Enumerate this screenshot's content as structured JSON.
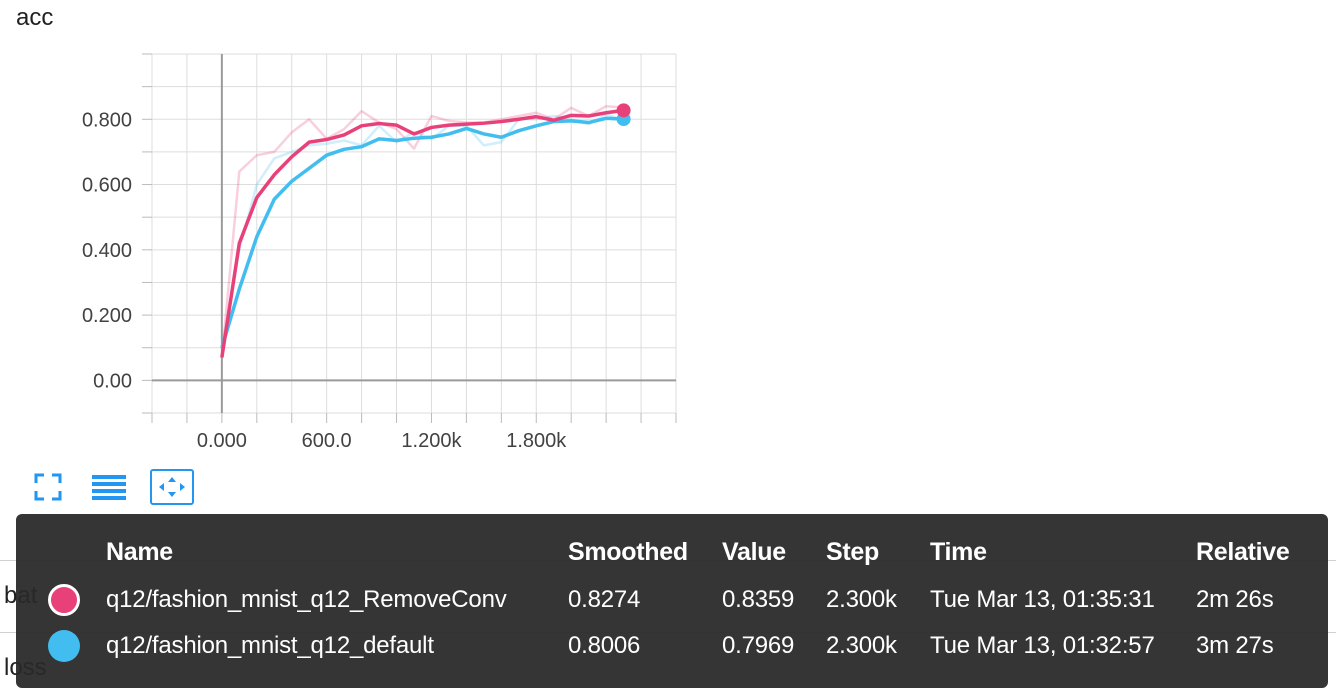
{
  "card": {
    "title": "acc",
    "below_labels": [
      "bat",
      "loss"
    ]
  },
  "toolbar": {
    "fullscreen_icon": "expand-icon",
    "log_icon": "list-icon",
    "fit_icon": "fit-domain-icon",
    "accent": "#2196f3"
  },
  "chart_data": {
    "type": "line",
    "title": "acc",
    "xlabel": "",
    "ylabel": "",
    "xlim": [
      -400,
      2600
    ],
    "ylim": [
      -0.1,
      1.0
    ],
    "xticks": [
      0,
      600,
      1200,
      1800
    ],
    "xtick_labels": [
      "0.000",
      "600.0",
      "1.200k",
      "1.800k"
    ],
    "yticks": [
      0,
      0.2,
      0.4,
      0.6,
      0.8
    ],
    "ytick_labels": [
      "0.00",
      "0.200",
      "0.400",
      "0.600",
      "0.800"
    ],
    "grid": true,
    "series": [
      {
        "name": "q12/fashion_mnist_q12_default",
        "color": "#42bdf0",
        "x": [
          0,
          100,
          200,
          300,
          400,
          500,
          600,
          700,
          800,
          900,
          1000,
          1100,
          1200,
          1300,
          1400,
          1500,
          1600,
          1700,
          1800,
          1900,
          2000,
          2100,
          2200,
          2300
        ],
        "smoothed": [
          0.1,
          0.28,
          0.44,
          0.555,
          0.61,
          0.65,
          0.69,
          0.708,
          0.716,
          0.74,
          0.735,
          0.742,
          0.745,
          0.755,
          0.772,
          0.755,
          0.745,
          0.765,
          0.78,
          0.793,
          0.795,
          0.79,
          0.803,
          0.8006
        ],
        "raw": [
          0.1,
          0.4,
          0.6,
          0.68,
          0.7,
          0.72,
          0.725,
          0.735,
          0.72,
          0.78,
          0.73,
          0.76,
          0.74,
          0.78,
          0.78,
          0.72,
          0.73,
          0.8,
          0.8,
          0.81,
          0.8,
          0.785,
          0.815,
          0.7969
        ]
      },
      {
        "name": "q12/fashion_mnist_q12_RemoveConv",
        "color": "#e8417a",
        "x": [
          0,
          100,
          200,
          300,
          400,
          500,
          600,
          700,
          800,
          900,
          1000,
          1100,
          1200,
          1300,
          1400,
          1500,
          1600,
          1700,
          1800,
          1900,
          2000,
          2100,
          2200,
          2300
        ],
        "smoothed": [
          0.07,
          0.42,
          0.56,
          0.63,
          0.685,
          0.73,
          0.738,
          0.752,
          0.78,
          0.787,
          0.782,
          0.755,
          0.775,
          0.782,
          0.785,
          0.788,
          0.793,
          0.8,
          0.808,
          0.797,
          0.812,
          0.81,
          0.82,
          0.8274
        ],
        "raw": [
          0.07,
          0.64,
          0.69,
          0.7,
          0.76,
          0.8,
          0.74,
          0.77,
          0.825,
          0.79,
          0.77,
          0.71,
          0.81,
          0.795,
          0.79,
          0.79,
          0.8,
          0.81,
          0.82,
          0.8,
          0.835,
          0.81,
          0.84,
          0.8359
        ]
      }
    ]
  },
  "tooltip": {
    "headers": {
      "name": "Name",
      "smoothed": "Smoothed",
      "value": "Value",
      "step": "Step",
      "time": "Time",
      "relative": "Relative"
    },
    "rows": [
      {
        "color": "#e8417a",
        "name": "q12/fashion_mnist_q12_RemoveConv",
        "smoothed": "0.8274",
        "value": "0.8359",
        "step": "2.300k",
        "time": "Tue Mar 13, 01:35:31",
        "relative": "2m 26s"
      },
      {
        "color": "#42bdf0",
        "name": "q12/fashion_mnist_q12_default",
        "smoothed": "0.8006",
        "value": "0.7969",
        "step": "2.300k",
        "time": "Tue Mar 13, 01:32:57",
        "relative": "3m 27s"
      }
    ]
  }
}
